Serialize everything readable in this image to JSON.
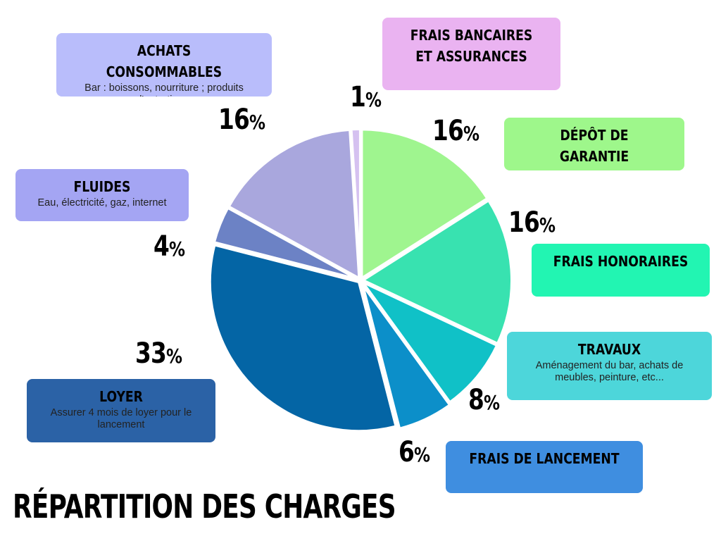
{
  "title": "RÉPARTITION DES CHARGES",
  "chart_data": {
    "type": "pie",
    "title": "RÉPARTITION DES CHARGES",
    "slices": [
      {
        "label": "DÉPÔT DE GARANTIE",
        "description": "",
        "value": 16,
        "color": "#9ff58f"
      },
      {
        "label": "FRAIS HONORAIRES",
        "description": "",
        "value": 16,
        "color": "#38e2b0"
      },
      {
        "label": "TRAVAUX",
        "description": "Aménagement du bar, achats de meubles, peinture, etc...",
        "value": 8,
        "color": "#10c1c7"
      },
      {
        "label": "FRAIS DE LANCEMENT",
        "description": "",
        "value": 6,
        "color": "#0c8fc9"
      },
      {
        "label": "LOYER",
        "description": "Assurer 4 mois de loyer pour le lancement",
        "value": 33,
        "color": "#0465a5"
      },
      {
        "label": "FLUIDES",
        "description": "Eau, électricité, gaz, internet",
        "value": 4,
        "color": "#6c82c5"
      },
      {
        "label": "ACHATS CONSOMMABLES",
        "description": "Bar : boissons, nourriture ; produits d'entretien...",
        "value": 16,
        "color": "#a9a7dd"
      },
      {
        "label": "FRAIS BANCAIRES ET ASSURANCES",
        "description": "",
        "value": 1,
        "color": "#d5c1f0"
      }
    ],
    "value_labels": [
      "16",
      "16",
      "8",
      "6",
      "33",
      "4",
      "16",
      "1"
    ],
    "percent_symbol": "%",
    "box_colors": [
      "#9ef78b",
      "#22f5b2",
      "#4dd6da",
      "#3f8ee0",
      "#2b62a6",
      "#a4a5f3",
      "#b9bdfb",
      "#eab3f1"
    ]
  }
}
